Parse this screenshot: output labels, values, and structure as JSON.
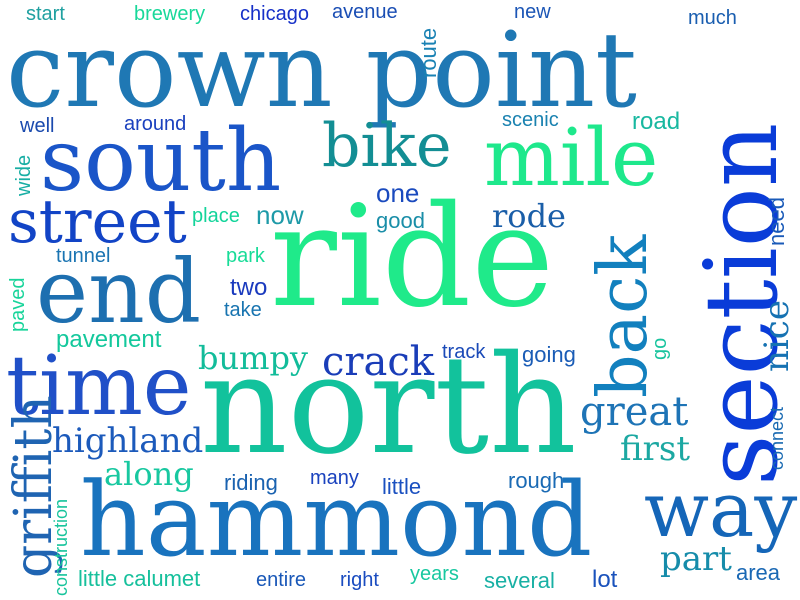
{
  "words": [
    {
      "text": "crown point",
      "color": "#1F78B4",
      "rotated": false
    },
    {
      "text": "south",
      "color": "#1A55C8",
      "rotated": false
    },
    {
      "text": "bike",
      "color": "#138E94",
      "rotated": false
    },
    {
      "text": "mile",
      "color": "#1EE88C",
      "rotated": false
    },
    {
      "text": "section",
      "color": "#0A3CD8",
      "rotated": true
    },
    {
      "text": "street",
      "color": "#1244C6",
      "rotated": false
    },
    {
      "text": "ride",
      "color": "#1FEA8A",
      "rotated": false
    },
    {
      "text": "end",
      "color": "#1D6FB0",
      "rotated": false
    },
    {
      "text": "back",
      "color": "#1280BE",
      "rotated": true
    },
    {
      "text": "time",
      "color": "#2050C8",
      "rotated": false
    },
    {
      "text": "north",
      "color": "#12C29C",
      "rotated": false
    },
    {
      "text": "hammond",
      "color": "#1973BE",
      "rotated": false
    },
    {
      "text": "way",
      "color": "#1566B8",
      "rotated": false
    },
    {
      "text": "griffith",
      "color": "#1F64B2",
      "rotated": true
    },
    {
      "text": "highland",
      "color": "#1C5ABB",
      "rotated": false
    },
    {
      "text": "along",
      "color": "#18C8A0",
      "rotated": false
    },
    {
      "text": "crack",
      "color": "#1A3DB8",
      "rotated": false
    },
    {
      "text": "bumpy",
      "color": "#12BC9A",
      "rotated": false
    },
    {
      "text": "great",
      "color": "#1E74B6",
      "rotated": false
    },
    {
      "text": "first",
      "color": "#1CA8A2",
      "rotated": false
    },
    {
      "text": "part",
      "color": "#168CAA",
      "rotated": false
    },
    {
      "text": "nice",
      "color": "#1672B2",
      "rotated": true
    },
    {
      "text": "rode",
      "color": "#1A5EA8",
      "rotated": false
    },
    {
      "text": "one",
      "color": "#1A4ABE",
      "rotated": false
    },
    {
      "text": "good",
      "color": "#1A8EA8",
      "rotated": false
    },
    {
      "text": "now",
      "color": "#1E9AA8",
      "rotated": false
    },
    {
      "text": "place",
      "color": "#12D49A",
      "rotated": false
    },
    {
      "text": "start",
      "color": "#1FA0A0",
      "rotated": false
    },
    {
      "text": "brewery",
      "color": "#18D89A",
      "rotated": false
    },
    {
      "text": "chicago",
      "color": "#1630C8",
      "rotated": false
    },
    {
      "text": "avenue",
      "color": "#1A4EB4",
      "rotated": false
    },
    {
      "text": "route",
      "color": "#1A82B4",
      "rotated": true
    },
    {
      "text": "new",
      "color": "#1C56B6",
      "rotated": false
    },
    {
      "text": "much",
      "color": "#1A5EB0",
      "rotated": false
    },
    {
      "text": "well",
      "color": "#1A4AAE",
      "rotated": false
    },
    {
      "text": "around",
      "color": "#1A40BE",
      "rotated": false
    },
    {
      "text": "scenic",
      "color": "#1A82B0",
      "rotated": false
    },
    {
      "text": "road",
      "color": "#18B8A0",
      "rotated": false
    },
    {
      "text": "wide",
      "color": "#18AEA4",
      "rotated": true
    },
    {
      "text": "need",
      "color": "#1A5AB8",
      "rotated": true
    },
    {
      "text": "tunnel",
      "color": "#1A74B2",
      "rotated": false
    },
    {
      "text": "park",
      "color": "#18DC98",
      "rotated": false
    },
    {
      "text": "two",
      "color": "#1A3ABE",
      "rotated": false
    },
    {
      "text": "take",
      "color": "#1874B0",
      "rotated": false
    },
    {
      "text": "paved",
      "color": "#18D49A",
      "rotated": true
    },
    {
      "text": "pavement",
      "color": "#14C89C",
      "rotated": false
    },
    {
      "text": "track",
      "color": "#1A4AB8",
      "rotated": false
    },
    {
      "text": "going",
      "color": "#1A5CB6",
      "rotated": false
    },
    {
      "text": "go",
      "color": "#18C49E",
      "rotated": true
    },
    {
      "text": "connect",
      "color": "#1A6AB2",
      "rotated": true
    },
    {
      "text": "riding",
      "color": "#1A62B0",
      "rotated": false
    },
    {
      "text": "many",
      "color": "#1A42BE",
      "rotated": false
    },
    {
      "text": "little",
      "color": "#1A50C0",
      "rotated": false
    },
    {
      "text": "rough",
      "color": "#1A6AB4",
      "rotated": false
    },
    {
      "text": "construction",
      "color": "#18C49C",
      "rotated": true
    },
    {
      "text": "little calumet",
      "color": "#16C09C",
      "rotated": false
    },
    {
      "text": "entire",
      "color": "#1A58B8",
      "rotated": false
    },
    {
      "text": "right",
      "color": "#1A4CC0",
      "rotated": false
    },
    {
      "text": "years",
      "color": "#18C8A0",
      "rotated": false
    },
    {
      "text": "several",
      "color": "#18B0A4",
      "rotated": false
    },
    {
      "text": "lot",
      "color": "#1A52BC",
      "rotated": false
    },
    {
      "text": "area",
      "color": "#1A68B4",
      "rotated": false
    }
  ]
}
